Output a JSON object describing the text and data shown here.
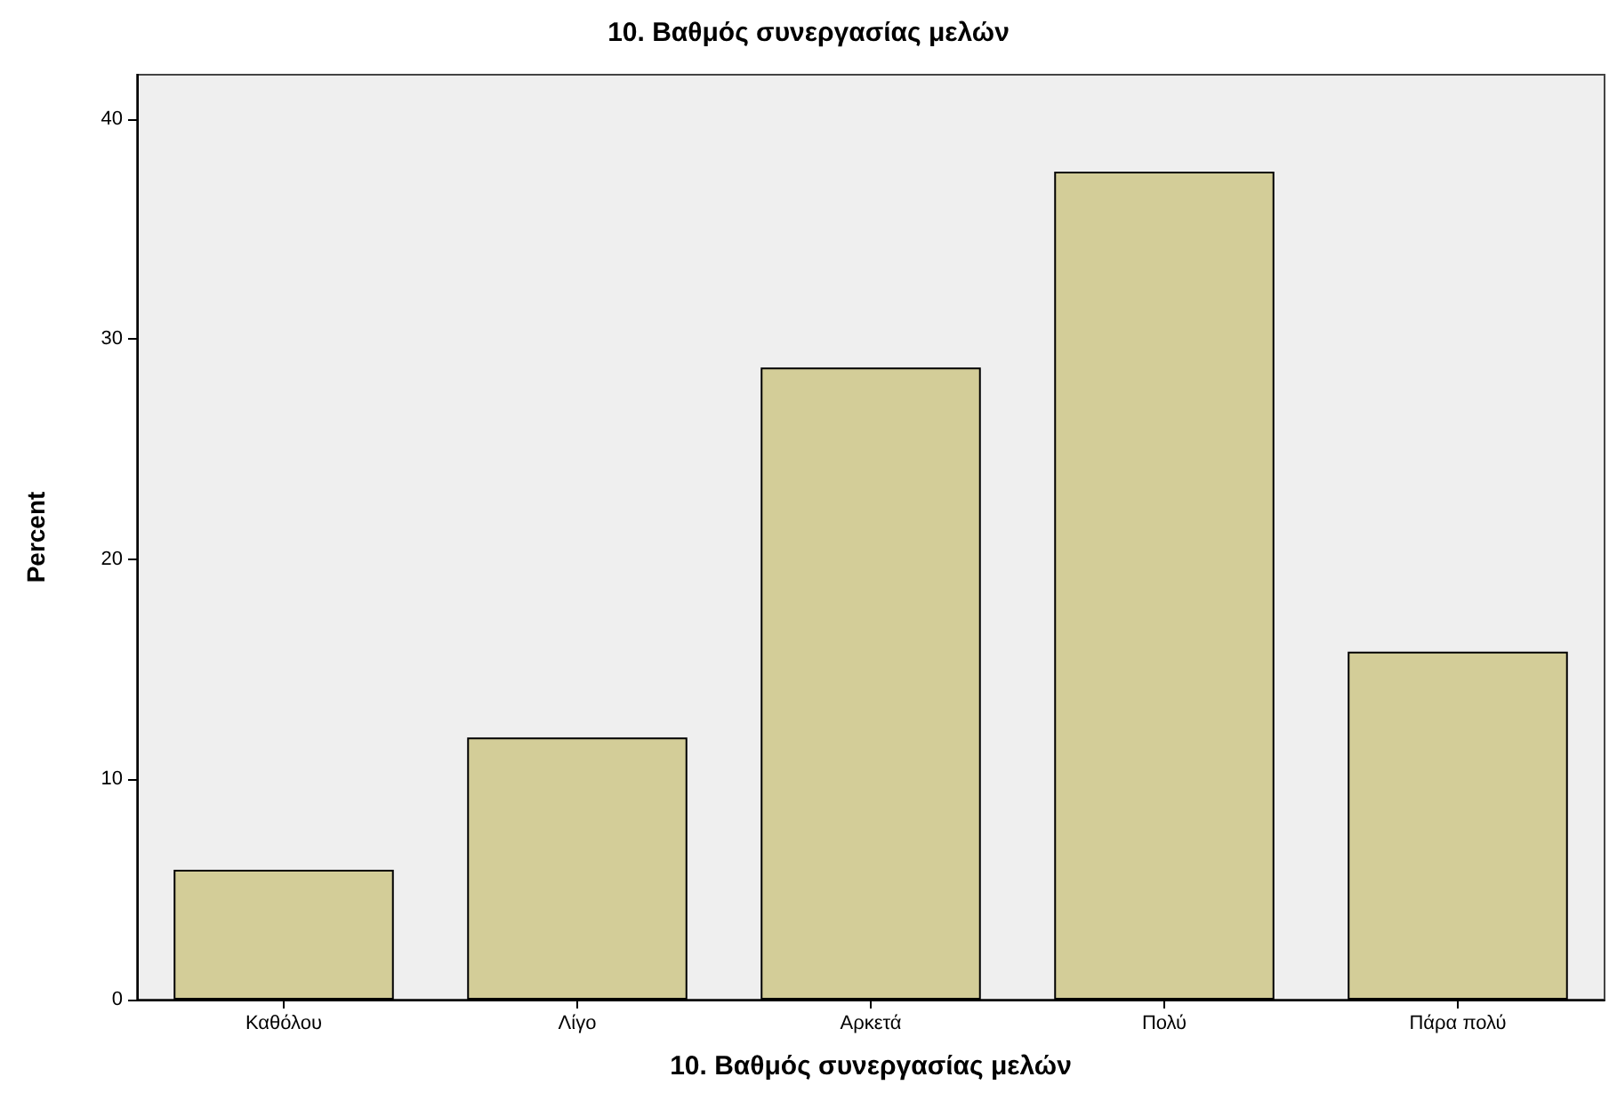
{
  "chart_data": {
    "type": "bar",
    "title": "10. Βαθμός συνεργασίας μελών",
    "xlabel": "10. Βαθμός συνεργασίας μελών",
    "ylabel": "Percent",
    "categories": [
      "Καθόλου",
      "Λίγο",
      "Αρκετά",
      "Πολύ",
      "Πάρα πολύ"
    ],
    "values": [
      5.9,
      11.9,
      28.7,
      37.6,
      15.8
    ],
    "color": "#d3cd98",
    "ylim": [
      0,
      42
    ],
    "yticks": [
      0,
      10,
      20,
      30,
      40
    ],
    "grid": false
  }
}
